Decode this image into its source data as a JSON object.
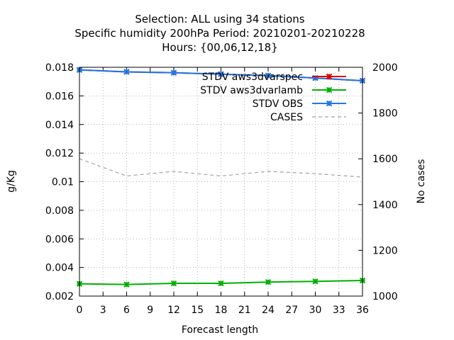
{
  "chart_data": {
    "type": "line",
    "title_lines": [
      "Selection: ALL using    34 stations",
      "Specific humidity 200hPa   Period: 20210201-20210228",
      "Hours: {00,06,12,18}"
    ],
    "xlabel": "Forecast length",
    "ylabel": "g/Kg",
    "y2label": "No cases",
    "x": [
      0,
      6,
      12,
      18,
      24,
      30,
      36
    ],
    "xticks": [
      "0",
      "3",
      "6",
      "9",
      "12",
      "15",
      "18",
      "21",
      "24",
      "27",
      "30",
      "33",
      "36"
    ],
    "yticks": [
      "0.002",
      "0.004",
      "0.006",
      "0.008",
      "0.01",
      "0.012",
      "0.014",
      "0.016",
      "0.018"
    ],
    "y2ticks": [
      "1000",
      "1200",
      "1400",
      "1600",
      "1800",
      "2000"
    ],
    "xlim": [
      0,
      36
    ],
    "ylim": [
      0.002,
      0.018
    ],
    "y2lim": [
      1000,
      2000
    ],
    "grid": true,
    "legend_position": "top-right",
    "series": [
      {
        "name": "STDV aws3dvarspec",
        "axis": "y1",
        "color": "#e00000",
        "marker": "x-star",
        "values": [
          0.01782,
          0.01768,
          0.01762,
          0.01752,
          0.01742,
          0.01725,
          0.01706
        ]
      },
      {
        "name": "STDV aws3dvarlamb",
        "axis": "y1",
        "color": "#00b000",
        "marker": "x-star",
        "values": [
          0.00286,
          0.00281,
          0.00289,
          0.00289,
          0.00298,
          0.00303,
          0.00309
        ]
      },
      {
        "name": "STDV OBS",
        "axis": "y1",
        "color": "#1e78e6",
        "marker": "x-star",
        "values": [
          0.01782,
          0.01768,
          0.01762,
          0.01752,
          0.01742,
          0.01725,
          0.01706
        ]
      },
      {
        "name": "CASES",
        "axis": "y2",
        "color": "#a0a0a0",
        "marker": "none",
        "dashed": true,
        "values": [
          1600,
          1525,
          1545,
          1525,
          1545,
          1535,
          1520
        ]
      }
    ]
  }
}
